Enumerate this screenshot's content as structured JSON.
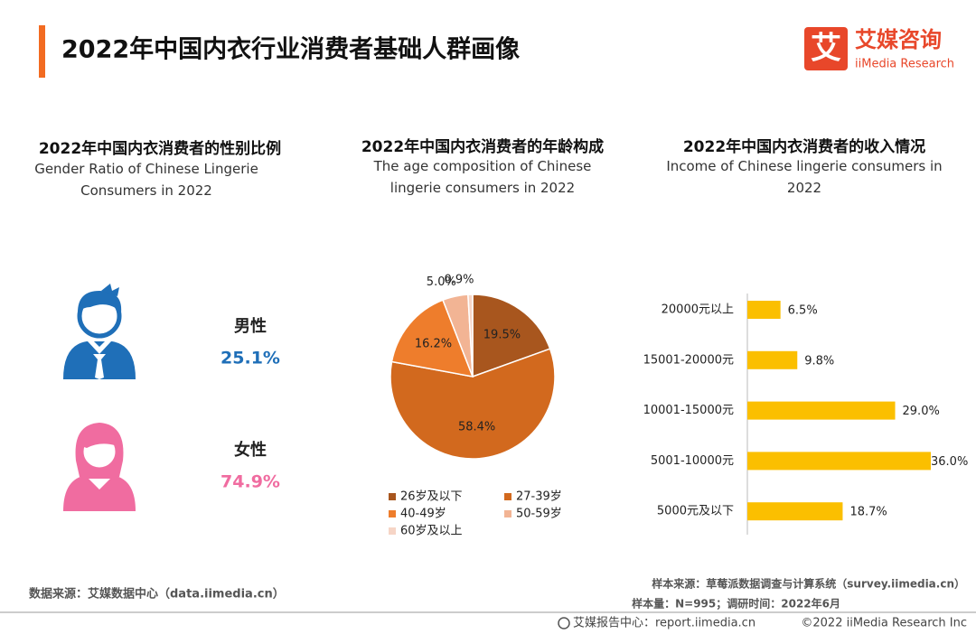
{
  "header": {
    "title": "2022年中国内衣行业消费者基础人群画像",
    "logo_mark": "艾",
    "logo_cn": "艾媒咨询",
    "logo_en": "iiMedia Research"
  },
  "chart_data": [
    {
      "type": "pictogram",
      "title": "2022年中国内衣消费者的性别比例",
      "subtitle": "Gender Ratio of Chinese Lingerie Consumers in 2022",
      "categories": [
        "男性",
        "女性"
      ],
      "values": [
        25.1,
        74.9
      ],
      "value_labels": [
        "25.1%",
        "74.9%"
      ],
      "colors": [
        "#1f6fb8",
        "#f06ca0"
      ]
    },
    {
      "type": "pie",
      "title": "2022年中国内衣消费者的年龄构成",
      "subtitle": "The age composition of Chinese lingerie consumers in 2022",
      "categories": [
        "26岁及以下",
        "27-39岁",
        "40-49岁",
        "50-59岁",
        "60岁及以上"
      ],
      "values": [
        19.5,
        58.4,
        16.2,
        5.0,
        0.9
      ],
      "value_labels": [
        "19.5%",
        "58.4%",
        "16.2%",
        "5.0%",
        "0.9%"
      ],
      "colors": [
        "#a8561e",
        "#d2691e",
        "#ee7d2c",
        "#f2b494",
        "#f6d5c6"
      ]
    },
    {
      "type": "hbar",
      "title": "2022年中国内衣消费者的收入情况",
      "subtitle": "Income of Chinese lingerie consumers in 2022",
      "categories": [
        "20000元以上",
        "15001-20000元",
        "10001-15000元",
        "5001-10000元",
        "5000元及以下"
      ],
      "values": [
        6.5,
        9.8,
        29.0,
        36.0,
        18.7
      ],
      "value_labels": [
        "6.5%",
        "9.8%",
        "29.0%",
        "36.0%",
        "18.7%"
      ],
      "color": "#fbbf00",
      "xlim": [
        0,
        36
      ]
    }
  ],
  "footer": {
    "source": "数据来源：艾媒数据中心（data.iimedia.cn）",
    "sample_source": "样本来源：草莓派数据调查与计算系统（survey.iimedia.cn）",
    "sample_info": "样本量：N=995；调研时间：2022年6月",
    "report": "艾媒报告中心：report.iimedia.cn",
    "copyright": "©2022  iiMedia Research Inc"
  }
}
